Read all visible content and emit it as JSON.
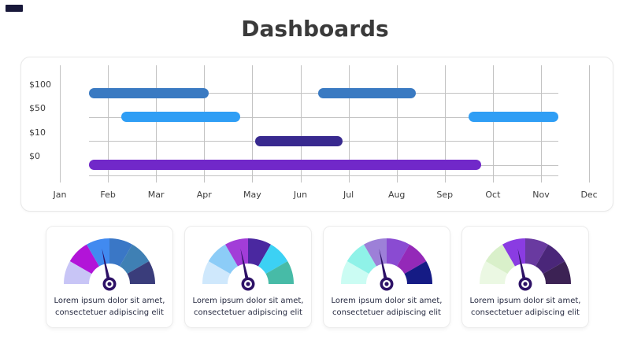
{
  "title": "Dashboards",
  "logo": {
    "color": "#18183a"
  },
  "chart_data": [
    {
      "type": "gantt",
      "title": "",
      "y_tick_labels": [
        "$100",
        "$50",
        "$10",
        "$0"
      ],
      "x_tick_labels": [
        "Jan",
        "Feb",
        "Mar",
        "Apr",
        "May",
        "Jun",
        "Jul",
        "Aug",
        "Sep",
        "Oct",
        "Nov",
        "Dec"
      ],
      "x_range": [
        0,
        11
      ],
      "grid": true,
      "grid_color": "#c2c2c2",
      "rows": [
        {
          "label": "$100",
          "color": "#3a7ac2",
          "bars": [
            {
              "start": 0.61,
              "end": 3.09
            },
            {
              "start": 5.37,
              "end": 7.4
            }
          ]
        },
        {
          "label": "$50",
          "color": "#2f9ef5",
          "bars": [
            {
              "start": 1.28,
              "end": 3.75
            },
            {
              "start": 8.49,
              "end": 10.36
            }
          ]
        },
        {
          "label": "$10",
          "color": "#38298f",
          "bars": [
            {
              "start": 4.06,
              "end": 5.88
            }
          ]
        },
        {
          "label": "$0",
          "color": "#7128c9",
          "bars": [
            {
              "start": 0.61,
              "end": 8.76
            }
          ]
        }
      ]
    },
    {
      "type": "gauge",
      "segment_colors": [
        "#c8c5f6",
        "#b214d8",
        "#418af0",
        "#3a77c6",
        "#3f80b4",
        "#3a3d7b"
      ],
      "needle_angle_deg": 102,
      "needle_color": "#2d1166",
      "caption_line1": "Lorem ipsum dolor sit amet,",
      "caption_line2": "consectetuer adipiscing elit"
    },
    {
      "type": "gauge",
      "segment_colors": [
        "#cfe8fc",
        "#8cccf7",
        "#a23dd8",
        "#4a28a0",
        "#3cd1f4",
        "#47bba7"
      ],
      "needle_angle_deg": 102,
      "needle_color": "#2d1166",
      "caption_line1": "Lorem ipsum dolor sit amet,",
      "caption_line2": "consectetuer adipiscing elit"
    },
    {
      "type": "gauge",
      "segment_colors": [
        "#cbfcf3",
        "#8ff2e8",
        "#9d80d8",
        "#8a4bd2",
        "#9429b8",
        "#151b85"
      ],
      "needle_angle_deg": 102,
      "needle_color": "#2d1166",
      "caption_line1": "Lorem ipsum dolor sit amet,",
      "caption_line2": "consectetuer adipiscing elit"
    },
    {
      "type": "gauge",
      "segment_colors": [
        "#ebf8e3",
        "#d9f0ca",
        "#8a3ce2",
        "#693aa0",
        "#4a2679",
        "#3c2254"
      ],
      "needle_angle_deg": 102,
      "needle_color": "#2d1166",
      "caption_line1": "Lorem ipsum dolor sit amet,",
      "caption_line2": "consectetuer adipiscing elit"
    }
  ]
}
